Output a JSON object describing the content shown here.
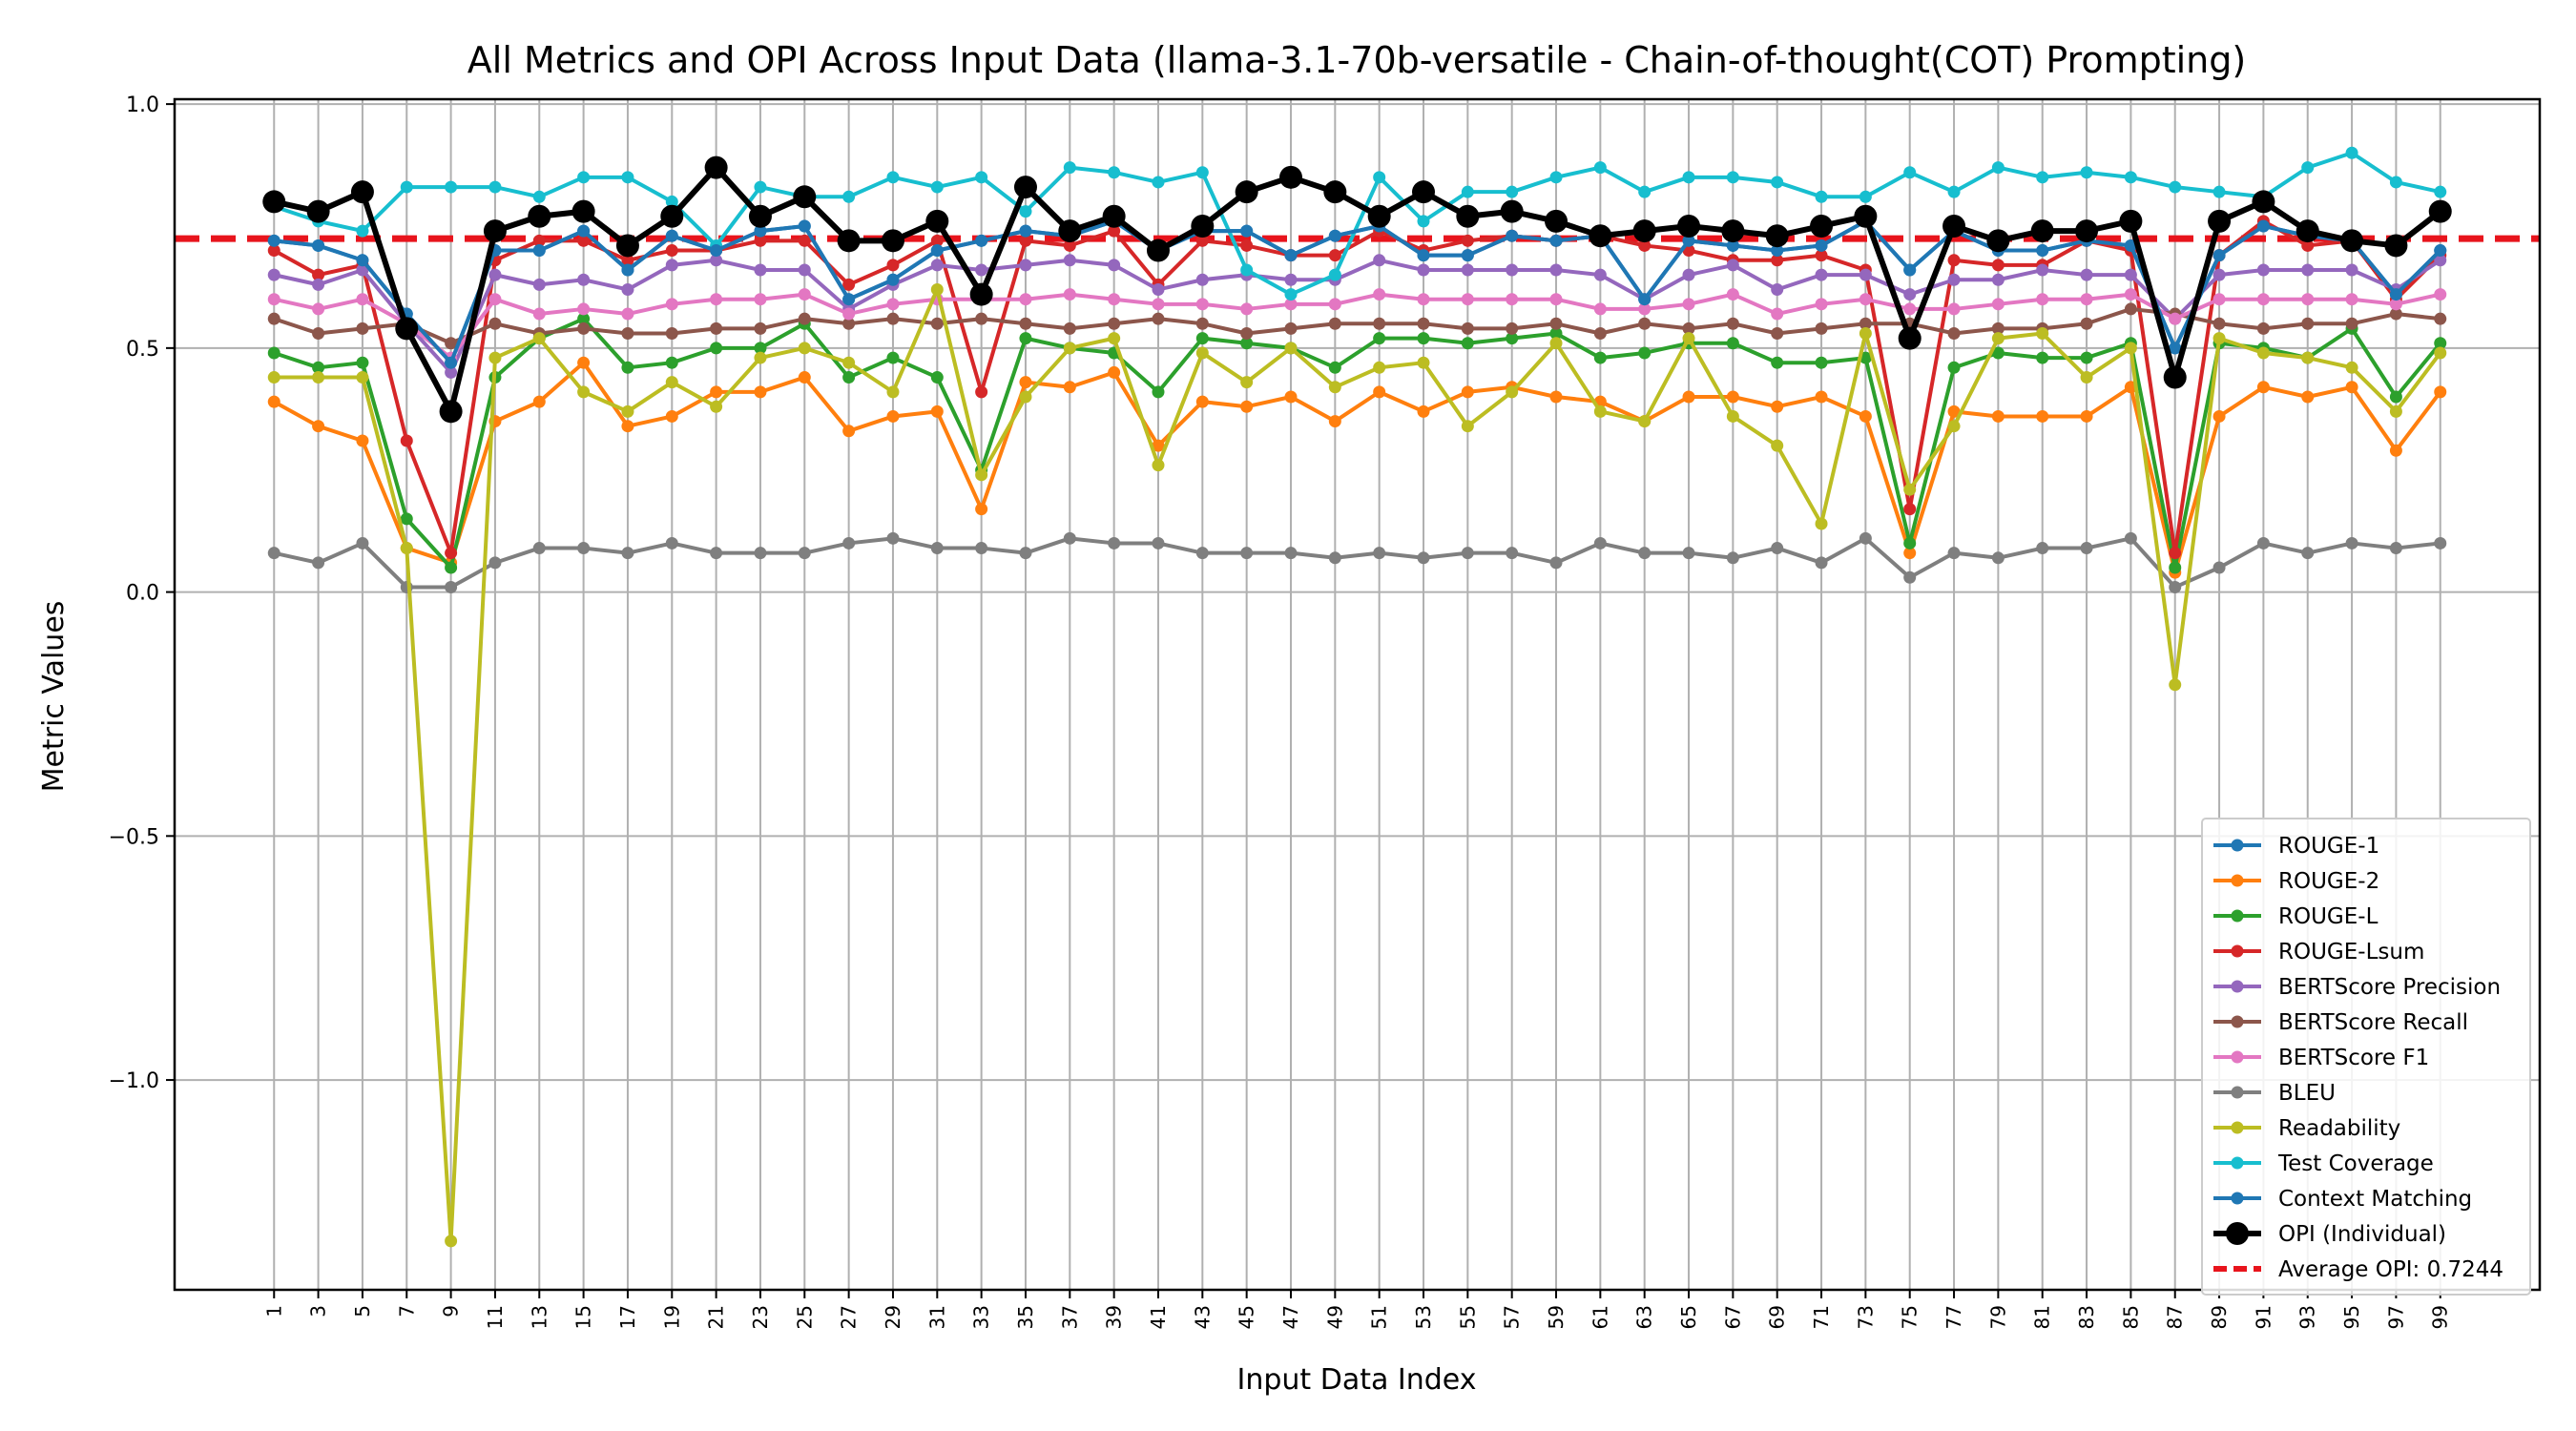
{
  "chart_data": {
    "type": "line",
    "title": "All Metrics and OPI Across Input Data (llama-3.1-70b-versatile - Chain-of-thought(COT) Prompting)",
    "xlabel": "Input Data Index",
    "ylabel": "Metric Values",
    "x": [
      1,
      3,
      5,
      7,
      9,
      11,
      13,
      15,
      17,
      19,
      21,
      23,
      25,
      27,
      29,
      31,
      33,
      35,
      37,
      39,
      41,
      43,
      45,
      47,
      49,
      51,
      53,
      55,
      57,
      59,
      61,
      63,
      65,
      67,
      69,
      71,
      73,
      75,
      77,
      79,
      81,
      83,
      85,
      87,
      89,
      91,
      93,
      95,
      97,
      99
    ],
    "xticks": [
      "1",
      "3",
      "5",
      "7",
      "9",
      "11",
      "13",
      "15",
      "17",
      "19",
      "21",
      "23",
      "25",
      "27",
      "29",
      "31",
      "33",
      "35",
      "37",
      "39",
      "41",
      "43",
      "45",
      "47",
      "49",
      "51",
      "53",
      "55",
      "57",
      "59",
      "61",
      "63",
      "65",
      "67",
      "69",
      "71",
      "73",
      "75",
      "77",
      "79",
      "81",
      "83",
      "85",
      "87",
      "89",
      "91",
      "93",
      "95",
      "97",
      "99"
    ],
    "xlim": [
      -3.5,
      103.5
    ],
    "ylim": [
      -1.43,
      1.01
    ],
    "yticks": [
      1.0,
      0.5,
      0.0,
      -0.5,
      -1.0
    ],
    "ytick_labels": [
      "1.0",
      "0.5",
      "0.0",
      "−0.5",
      "−1.0"
    ],
    "grid": true,
    "legend_position": "lower-right",
    "reference_line": {
      "label": "Average OPI: 0.7244",
      "value": 0.7244,
      "color": "#e8141c",
      "style": "dashed"
    },
    "series": [
      {
        "name": "ROUGE-1",
        "color": "#1f77b4",
        "values": [
          0.72,
          0.71,
          0.68,
          0.57,
          0.47,
          0.7,
          0.7,
          0.74,
          0.66,
          0.73,
          0.7,
          0.74,
          0.75,
          0.6,
          0.64,
          0.7,
          0.72,
          0.74,
          0.73,
          0.76,
          0.7,
          0.74,
          0.74,
          0.69,
          0.73,
          0.75,
          0.69,
          0.69,
          0.73,
          0.72,
          0.73,
          0.6,
          0.72,
          0.71,
          0.7,
          0.71,
          0.76,
          0.66,
          0.74,
          0.7,
          0.7,
          0.72,
          0.71,
          0.5,
          0.69,
          0.75,
          0.73,
          0.72,
          0.61,
          0.7
        ]
      },
      {
        "name": "ROUGE-2",
        "color": "#ff7f0e",
        "values": [
          0.39,
          0.34,
          0.31,
          0.09,
          0.06,
          0.35,
          0.39,
          0.47,
          0.34,
          0.36,
          0.41,
          0.41,
          0.44,
          0.33,
          0.36,
          0.37,
          0.17,
          0.43,
          0.42,
          0.45,
          0.3,
          0.39,
          0.38,
          0.4,
          0.35,
          0.41,
          0.37,
          0.41,
          0.42,
          0.4,
          0.39,
          0.35,
          0.4,
          0.4,
          0.38,
          0.4,
          0.36,
          0.08,
          0.37,
          0.36,
          0.36,
          0.36,
          0.42,
          0.04,
          0.36,
          0.42,
          0.4,
          0.42,
          0.29,
          0.41
        ]
      },
      {
        "name": "ROUGE-L",
        "color": "#2ca02c",
        "values": [
          0.49,
          0.46,
          0.47,
          0.15,
          0.05,
          0.44,
          0.52,
          0.56,
          0.46,
          0.47,
          0.5,
          0.5,
          0.55,
          0.44,
          0.48,
          0.44,
          0.25,
          0.52,
          0.5,
          0.49,
          0.41,
          0.52,
          0.51,
          0.5,
          0.46,
          0.52,
          0.52,
          0.51,
          0.52,
          0.53,
          0.48,
          0.49,
          0.51,
          0.51,
          0.47,
          0.47,
          0.48,
          0.1,
          0.46,
          0.49,
          0.48,
          0.48,
          0.51,
          0.05,
          0.51,
          0.5,
          0.48,
          0.54,
          0.4,
          0.51
        ]
      },
      {
        "name": "ROUGE-Lsum",
        "color": "#d62728",
        "values": [
          0.7,
          0.65,
          0.67,
          0.31,
          0.08,
          0.68,
          0.72,
          0.72,
          0.68,
          0.7,
          0.7,
          0.72,
          0.72,
          0.63,
          0.67,
          0.72,
          0.41,
          0.72,
          0.71,
          0.74,
          0.63,
          0.72,
          0.71,
          0.69,
          0.69,
          0.74,
          0.7,
          0.72,
          0.73,
          0.72,
          0.73,
          0.71,
          0.7,
          0.68,
          0.68,
          0.69,
          0.66,
          0.17,
          0.68,
          0.67,
          0.67,
          0.72,
          0.7,
          0.08,
          0.69,
          0.76,
          0.71,
          0.72,
          0.6,
          0.69
        ]
      },
      {
        "name": "BERTScore Precision",
        "color": "#9467bd",
        "values": [
          0.65,
          0.63,
          0.66,
          0.55,
          0.45,
          0.65,
          0.63,
          0.64,
          0.62,
          0.67,
          0.68,
          0.66,
          0.66,
          0.58,
          0.63,
          0.67,
          0.66,
          0.67,
          0.68,
          0.67,
          0.62,
          0.64,
          0.65,
          0.64,
          0.64,
          0.68,
          0.66,
          0.66,
          0.66,
          0.66,
          0.65,
          0.6,
          0.65,
          0.67,
          0.62,
          0.65,
          0.65,
          0.61,
          0.64,
          0.64,
          0.66,
          0.65,
          0.65,
          0.56,
          0.65,
          0.66,
          0.66,
          0.66,
          0.62,
          0.68
        ]
      },
      {
        "name": "BERTScore Recall",
        "color": "#8c564b",
        "values": [
          0.56,
          0.53,
          0.54,
          0.55,
          0.51,
          0.55,
          0.53,
          0.54,
          0.53,
          0.53,
          0.54,
          0.54,
          0.56,
          0.55,
          0.56,
          0.55,
          0.56,
          0.55,
          0.54,
          0.55,
          0.56,
          0.55,
          0.53,
          0.54,
          0.55,
          0.55,
          0.55,
          0.54,
          0.54,
          0.55,
          0.53,
          0.55,
          0.54,
          0.55,
          0.53,
          0.54,
          0.55,
          0.55,
          0.53,
          0.54,
          0.54,
          0.55,
          0.58,
          0.57,
          0.55,
          0.54,
          0.55,
          0.55,
          0.57,
          0.56
        ]
      },
      {
        "name": "BERTScore F1",
        "color": "#e377c2",
        "values": [
          0.6,
          0.58,
          0.6,
          0.55,
          0.48,
          0.6,
          0.57,
          0.58,
          0.57,
          0.59,
          0.6,
          0.6,
          0.61,
          0.57,
          0.59,
          0.6,
          0.6,
          0.6,
          0.61,
          0.6,
          0.59,
          0.59,
          0.58,
          0.59,
          0.59,
          0.61,
          0.6,
          0.6,
          0.6,
          0.6,
          0.58,
          0.58,
          0.59,
          0.61,
          0.57,
          0.59,
          0.6,
          0.58,
          0.58,
          0.59,
          0.6,
          0.6,
          0.61,
          0.56,
          0.6,
          0.6,
          0.6,
          0.6,
          0.59,
          0.61
        ]
      },
      {
        "name": "BLEU",
        "color": "#7f7f7f",
        "values": [
          0.08,
          0.06,
          0.1,
          0.01,
          0.01,
          0.06,
          0.09,
          0.09,
          0.08,
          0.1,
          0.08,
          0.08,
          0.08,
          0.1,
          0.11,
          0.09,
          0.09,
          0.08,
          0.11,
          0.1,
          0.1,
          0.08,
          0.08,
          0.08,
          0.07,
          0.08,
          0.07,
          0.08,
          0.08,
          0.06,
          0.1,
          0.08,
          0.08,
          0.07,
          0.09,
          0.06,
          0.11,
          0.03,
          0.08,
          0.07,
          0.09,
          0.09,
          0.11,
          0.01,
          0.05,
          0.1,
          0.08,
          0.1,
          0.09,
          0.1
        ]
      },
      {
        "name": "Readability",
        "color": "#bcbd22",
        "values": [
          0.44,
          0.44,
          0.44,
          0.09,
          -1.33,
          0.48,
          0.52,
          0.41,
          0.37,
          0.43,
          0.38,
          0.48,
          0.5,
          0.47,
          0.41,
          0.62,
          0.24,
          0.4,
          0.5,
          0.52,
          0.26,
          0.49,
          0.43,
          0.5,
          0.42,
          0.46,
          0.47,
          0.34,
          0.41,
          0.51,
          0.37,
          0.35,
          0.52,
          0.36,
          0.3,
          0.14,
          0.53,
          0.21,
          0.34,
          0.52,
          0.53,
          0.44,
          0.5,
          -0.19,
          0.52,
          0.49,
          0.48,
          0.46,
          0.37,
          0.49
        ]
      },
      {
        "name": "Test Coverage",
        "color": "#17becf",
        "values": [
          0.79,
          0.76,
          0.74,
          0.83,
          0.83,
          0.83,
          0.81,
          0.85,
          0.85,
          0.8,
          0.71,
          0.83,
          0.81,
          0.81,
          0.85,
          0.83,
          0.85,
          0.78,
          0.87,
          0.86,
          0.84,
          0.86,
          0.66,
          0.61,
          0.65,
          0.85,
          0.76,
          0.82,
          0.82,
          0.85,
          0.87,
          0.82,
          0.85,
          0.85,
          0.84,
          0.81,
          0.81,
          0.86,
          0.82,
          0.87,
          0.85,
          0.86,
          0.85,
          0.83,
          0.82,
          0.81,
          0.87,
          0.9,
          0.84,
          0.82
        ]
      },
      {
        "name": "Context Matching",
        "color": "#1f77b4",
        "values": [
          0.72,
          0.71,
          0.68,
          0.57,
          0.47,
          0.7,
          0.7,
          0.74,
          0.66,
          0.73,
          0.7,
          0.74,
          0.75,
          0.6,
          0.64,
          0.7,
          0.72,
          0.74,
          0.73,
          0.76,
          0.7,
          0.74,
          0.74,
          0.69,
          0.73,
          0.75,
          0.69,
          0.69,
          0.73,
          0.72,
          0.73,
          0.6,
          0.72,
          0.71,
          0.7,
          0.71,
          0.76,
          0.66,
          0.74,
          0.7,
          0.7,
          0.72,
          0.71,
          0.5,
          0.69,
          0.75,
          0.73,
          0.72,
          0.61,
          0.7
        ]
      },
      {
        "name": "OPI (Individual)",
        "color": "#000000",
        "values": [
          0.8,
          0.78,
          0.82,
          0.54,
          0.37,
          0.74,
          0.77,
          0.78,
          0.71,
          0.77,
          0.87,
          0.77,
          0.81,
          0.72,
          0.72,
          0.76,
          0.61,
          0.83,
          0.74,
          0.77,
          0.7,
          0.75,
          0.82,
          0.85,
          0.82,
          0.77,
          0.82,
          0.77,
          0.78,
          0.76,
          0.73,
          0.74,
          0.75,
          0.74,
          0.73,
          0.75,
          0.77,
          0.52,
          0.75,
          0.72,
          0.74,
          0.74,
          0.76,
          0.44,
          0.76,
          0.8,
          0.74,
          0.72,
          0.71,
          0.78
        ]
      }
    ]
  }
}
